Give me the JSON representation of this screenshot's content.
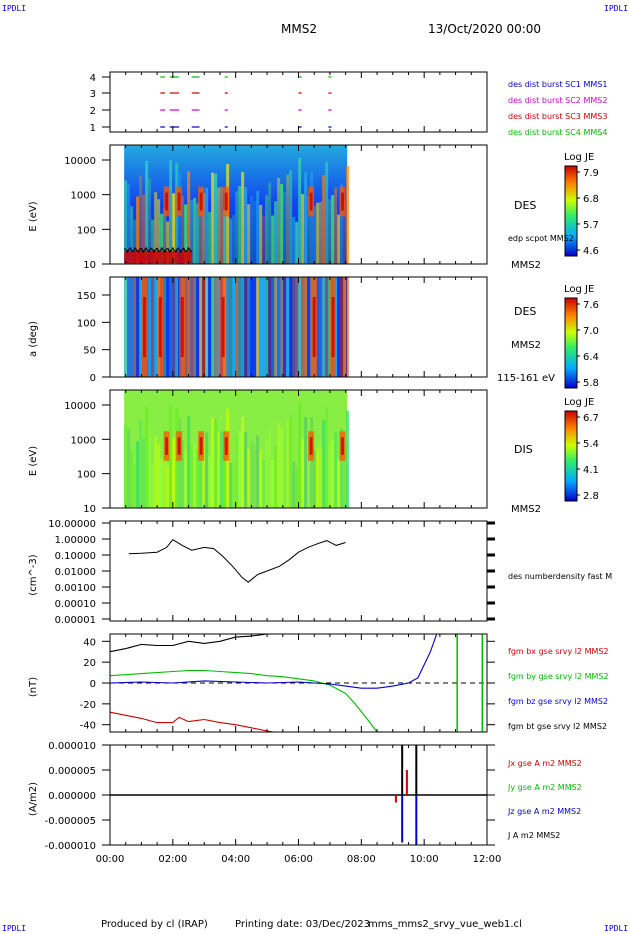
{
  "corners": {
    "tl": "IPDLI",
    "tr": "IPDLI",
    "bl": "IPDLI",
    "br": "IPDLI"
  },
  "header": {
    "title": "MMS2",
    "date": "13/Oct/2020 00:00"
  },
  "footer": {
    "produced": "Produced by cl (IRAP)",
    "printing": "Printing date: 03/Dec/2023",
    "file": "mms_mms2_srvy_vue_web1.cl"
  },
  "colors": {
    "sc1": "#0000cc",
    "sc2": "#cc00cc",
    "sc3": "#cc0000",
    "sc4": "#00bb00",
    "bx": "#cc0000",
    "by": "#00bb00",
    "bz": "#0000cc",
    "bt": "#000000"
  },
  "chart_data": [
    {
      "type": "scatter",
      "yticks": [
        "4",
        "3",
        "2",
        "1"
      ],
      "legend": [
        {
          "name": "des dist burst SC1 MMS1",
          "color": "#0000cc"
        },
        {
          "name": "des dist burst SC2 MMS2",
          "color": "#cc00cc"
        },
        {
          "name": "des dist burst SC3 MMS3",
          "color": "#cc0000"
        },
        {
          "name": "des dist burst SC4 MMS4",
          "color": "#00bb00"
        }
      ],
      "segments_hours": [
        [
          1.6,
          1.75
        ],
        [
          1.9,
          2.2
        ],
        [
          2.6,
          2.85
        ],
        [
          3.65,
          3.75
        ],
        [
          6.0,
          6.1
        ],
        [
          6.95,
          7.05
        ]
      ]
    },
    {
      "type": "heatmap",
      "ylabel": "E (eV)",
      "yticks": [
        "10000",
        "1000",
        "100",
        "10"
      ],
      "instrument": "DES",
      "overlay": "edp scpot MMS2",
      "sc": "MMS2",
      "colorbar": {
        "title": "Log JE",
        "ticks": [
          "7.9",
          "6.8",
          "5.7",
          "4.6"
        ]
      }
    },
    {
      "type": "heatmap",
      "ylabel": "a (deg)",
      "yticks": [
        "150",
        "100",
        "50",
        "0"
      ],
      "instrument": "DES",
      "sc": "MMS2",
      "energy": "115-161 eV",
      "colorbar": {
        "title": "Log JE",
        "ticks": [
          "7.6",
          "7.0",
          "6.4",
          "5.8"
        ]
      }
    },
    {
      "type": "heatmap",
      "ylabel": "E (eV)",
      "yticks": [
        "10000",
        "1000",
        "100",
        "10"
      ],
      "instrument": "DIS",
      "sc": "MMS2",
      "colorbar": {
        "title": "Log JE",
        "ticks": [
          "6.7",
          "5.4",
          "4.1",
          "2.8"
        ]
      }
    },
    {
      "type": "line",
      "ylabel": "(cm^-3)",
      "yticks": [
        "10.00000",
        "1.00000",
        "0.10000",
        "0.01000",
        "0.00100",
        "0.00010",
        "0.00001"
      ],
      "legend": "des numberdensity fast M",
      "x": [
        0.6,
        1.0,
        1.5,
        1.8,
        2.0,
        2.3,
        2.6,
        3.0,
        3.3,
        3.6,
        3.9,
        4.2,
        4.4,
        4.7,
        5.0,
        5.4,
        5.7,
        6.0,
        6.3,
        6.6,
        6.9,
        7.2,
        7.5
      ],
      "values": [
        0.12,
        0.13,
        0.15,
        0.3,
        0.9,
        0.4,
        0.2,
        0.3,
        0.25,
        0.08,
        0.02,
        0.004,
        0.002,
        0.006,
        0.01,
        0.02,
        0.05,
        0.15,
        0.3,
        0.5,
        0.8,
        0.4,
        0.6
      ]
    },
    {
      "type": "line",
      "ylabel": "(nT)",
      "yticks": [
        "40",
        "20",
        "0",
        "-20",
        "-40"
      ],
      "ylim": [
        -47,
        47
      ],
      "series": [
        {
          "name": "fgm bx gse srvy l2 MMS2",
          "color": "#cc0000",
          "x": [
            0,
            0.5,
            1.0,
            1.5,
            2.0,
            2.2,
            2.5,
            3.0,
            3.5,
            4.0,
            4.5,
            5.0,
            5.2
          ],
          "values": [
            -28,
            -31,
            -34,
            -38,
            -38,
            -33,
            -37,
            -35,
            -38,
            -40,
            -43,
            -46,
            -47
          ]
        },
        {
          "name": "fgm by gse srvy l2 MMS2",
          "color": "#00bb00",
          "x": [
            0,
            0.5,
            1.0,
            1.5,
            2.0,
            2.5,
            3.0,
            3.5,
            4.0,
            4.5,
            5.0,
            5.5,
            6.0,
            6.5,
            7.0,
            7.5,
            7.8,
            8.2,
            8.5
          ],
          "values": [
            7,
            8,
            9,
            10,
            11,
            12,
            12,
            11,
            10,
            9,
            7,
            6,
            4,
            2,
            -2,
            -10,
            -20,
            -35,
            -47
          ]
        },
        {
          "name": "fgm bz gse srvy l2 MMS2",
          "color": "#0000cc",
          "x": [
            0,
            1.0,
            2.0,
            3.0,
            4.0,
            5.0,
            6.0,
            7.0,
            7.5,
            8.0,
            8.5,
            9.0,
            9.5,
            9.8,
            10.2,
            10.4
          ],
          "values": [
            0,
            1,
            0,
            2,
            1,
            0,
            1,
            -1,
            -3,
            -5,
            -5,
            -3,
            0,
            5,
            30,
            47
          ]
        },
        {
          "name": "fgm bt gse srvy l2 MMS2",
          "color": "#000000",
          "x": [
            0,
            0.5,
            1.0,
            1.5,
            2.0,
            2.5,
            3.0,
            3.5,
            4.0,
            4.5,
            5.0
          ],
          "values": [
            30,
            33,
            37,
            36,
            36,
            40,
            38,
            40,
            44,
            45,
            47
          ]
        }
      ]
    },
    {
      "type": "line",
      "ylabel": "(A/m2)",
      "yticks": [
        "0.000010",
        "0.000005",
        "0.000000",
        "-0.000005",
        "-0.000010"
      ],
      "ylim": [
        -1e-05,
        1e-05
      ],
      "series": [
        {
          "name": "Jx gse A m2 MMS2",
          "color": "#cc0000"
        },
        {
          "name": "Jy gse A m2 MMS2",
          "color": "#00bb00"
        },
        {
          "name": "Jz gse A m2 MMS2",
          "color": "#0000cc"
        },
        {
          "name": "J A m2 MMS2",
          "color": "#000000"
        }
      ]
    }
  ],
  "xaxis": {
    "ticks": [
      "00:00",
      "02:00",
      "04:00",
      "06:00",
      "08:00",
      "10:00",
      "12:00"
    ],
    "range_hours": [
      0,
      12
    ]
  }
}
